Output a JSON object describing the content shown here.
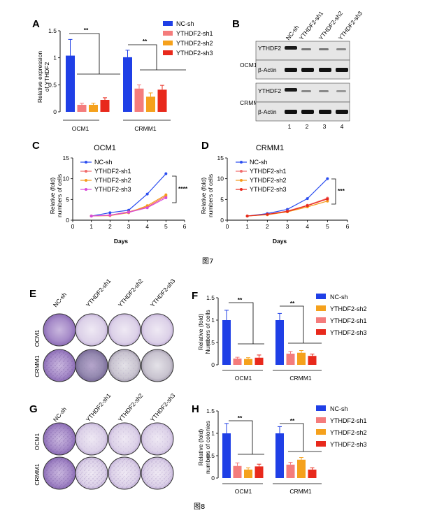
{
  "figure7": {
    "caption": "图7",
    "panelA": {
      "letter": "A",
      "ylabel": [
        "Relative expression",
        "of YTHDF2"
      ],
      "legend": [
        "NC-sh",
        "YTHDF2-sh1",
        "YTHDF2-sh2",
        "YTHDF2-sh3"
      ],
      "groups": [
        "OCM1",
        "CRMM1"
      ],
      "sig": [
        "**",
        "**"
      ]
    },
    "panelB": {
      "letter": "B",
      "lanes": [
        "NC-sh",
        "YTHDF2-sh1",
        "YTHDF2-sh2",
        "YTHDF2-sh3"
      ],
      "cells": [
        "OCM1",
        "CRMM1"
      ],
      "bands": [
        "YTHDF2",
        "β-Actin",
        "YTHDF2",
        "β-Actin"
      ],
      "lane_numbers": [
        "1",
        "2",
        "3",
        "4"
      ]
    },
    "panelC": {
      "letter": "C",
      "title": "OCM1",
      "ylabel": [
        "Relative (fold)",
        "numbers of cells"
      ],
      "xlabel": "Days",
      "legend": [
        "NC-sh",
        "YTHDF2-sh1",
        "YTHDF2-sh2",
        "YTHDF2-sh3"
      ],
      "sig": "****"
    },
    "panelD": {
      "letter": "D",
      "title": "CRMM1",
      "ylabel": [
        "Relative (fold)",
        "numbers of cells"
      ],
      "xlabel": "Days",
      "legend": [
        "NC-sh",
        "YTHDF2-sh1",
        "YTHDF2-sh2",
        "YTHDF2-sh3"
      ],
      "sig": "***"
    }
  },
  "figure8": {
    "caption": "图8",
    "panelE": {
      "letter": "E",
      "cols": [
        "NC-sh",
        "YTHDF2-sh1",
        "YTHDF2-sh2",
        "YTHDF2-sh3"
      ],
      "rows": [
        "OCM1",
        "CRMM1"
      ]
    },
    "panelF": {
      "letter": "F",
      "ylabel": [
        "Relative (fold)",
        "Numbers of cells"
      ],
      "legend": [
        "NC-sh",
        "YTHDF2-sh2",
        "YTHDF2-sh1",
        "YTHDF2-sh3"
      ],
      "groups": [
        "OCM1",
        "CRMM1"
      ],
      "sig": [
        "**",
        "**"
      ]
    },
    "panelG": {
      "letter": "G",
      "cols": [
        "NC-sh",
        "YTHDF2-sh1",
        "YTHDF2-sh2",
        "YTHDF2-sh3"
      ],
      "rows": [
        "OCM1",
        "CRMM1"
      ]
    },
    "panelH": {
      "letter": "H",
      "ylabel": [
        "Relative (fold)",
        "numbers of colonies"
      ],
      "legend": [
        "NC-sh",
        "YTHDF2-sh1",
        "YTHDF2-sh2",
        "YTHDF2-sh3"
      ],
      "groups": [
        "OCM1",
        "CRMM1"
      ],
      "sig": [
        "**",
        "**"
      ]
    }
  },
  "colors": {
    "nc": "#1f3fe6",
    "sh1": "#f47c7c",
    "sh2": "#f5a11c",
    "sh3": "#e8291c",
    "line_nc": "#2a4df0",
    "line_sh1": "#f06a6a",
    "line_sh2": "#f59a1a",
    "line_sh3": "#d94ad9"
  },
  "chart_data": [
    {
      "id": "A",
      "type": "bar",
      "categories": [
        "OCM1",
        "CRMM1"
      ],
      "ylim": [
        0,
        1.5
      ],
      "yticks": [
        0,
        0.5,
        1.0,
        1.5
      ],
      "series": [
        {
          "name": "NC-sh",
          "values": [
            1.04,
            1.01
          ],
          "err": [
            0.3,
            0.13
          ]
        },
        {
          "name": "YTHDF2-sh1",
          "values": [
            0.13,
            0.43
          ],
          "err": [
            0.03,
            0.07
          ]
        },
        {
          "name": "YTHDF2-sh2",
          "values": [
            0.13,
            0.28
          ],
          "err": [
            0.03,
            0.07
          ]
        },
        {
          "name": "YTHDF2-sh3",
          "values": [
            0.22,
            0.41
          ],
          "err": [
            0.04,
            0.08
          ]
        }
      ]
    },
    {
      "id": "C",
      "type": "line",
      "x": [
        1,
        2,
        3,
        4,
        5
      ],
      "xlim": [
        0,
        6
      ],
      "ylim": [
        0,
        15
      ],
      "yticks": [
        0,
        5,
        10,
        15
      ],
      "series": [
        {
          "name": "NC-sh",
          "values": [
            1.0,
            1.8,
            2.4,
            6.3,
            11.2
          ]
        },
        {
          "name": "YTHDF2-sh1",
          "values": [
            1.0,
            1.2,
            2.0,
            3.2,
            5.8
          ]
        },
        {
          "name": "YTHDF2-sh2",
          "values": [
            1.0,
            1.1,
            1.8,
            3.5,
            6.1
          ]
        },
        {
          "name": "YTHDF2-sh3",
          "values": [
            1.0,
            1.2,
            1.9,
            3.0,
            5.4
          ]
        }
      ]
    },
    {
      "id": "D",
      "type": "line",
      "x": [
        1,
        2,
        3,
        4,
        5
      ],
      "xlim": [
        0,
        6
      ],
      "ylim": [
        0,
        15
      ],
      "yticks": [
        0,
        5,
        10,
        15
      ],
      "series": [
        {
          "name": "NC-sh",
          "values": [
            1.0,
            1.6,
            2.6,
            5.2,
            10.0
          ]
        },
        {
          "name": "YTHDF2-sh1",
          "values": [
            1.0,
            1.4,
            2.2,
            3.6,
            5.3
          ]
        },
        {
          "name": "YTHDF2-sh2",
          "values": [
            1.0,
            1.3,
            2.0,
            3.2,
            4.6
          ]
        },
        {
          "name": "YTHDF2-sh3",
          "values": [
            1.0,
            1.4,
            2.1,
            3.5,
            5.1
          ]
        }
      ]
    },
    {
      "id": "F",
      "type": "bar",
      "categories": [
        "OCM1",
        "CRMM1"
      ],
      "ylim": [
        0,
        1.5
      ],
      "yticks": [
        0,
        0.5,
        1.0,
        1.5
      ],
      "series": [
        {
          "name": "NC-sh",
          "values": [
            1.0,
            1.0
          ],
          "err": [
            0.22,
            0.15
          ]
        },
        {
          "name": "YTHDF2-sh1",
          "values": [
            0.14,
            0.25
          ],
          "err": [
            0.03,
            0.05
          ]
        },
        {
          "name": "YTHDF2-sh2",
          "values": [
            0.13,
            0.27
          ],
          "err": [
            0.03,
            0.05
          ]
        },
        {
          "name": "YTHDF2-sh3",
          "values": [
            0.16,
            0.2
          ],
          "err": [
            0.06,
            0.04
          ]
        }
      ]
    },
    {
      "id": "H",
      "type": "bar",
      "categories": [
        "OCM1",
        "CRMM1"
      ],
      "ylim": [
        0,
        1.5
      ],
      "yticks": [
        0,
        0.5,
        1.0,
        1.5
      ],
      "series": [
        {
          "name": "NC-sh",
          "values": [
            1.0,
            1.0
          ],
          "err": [
            0.22,
            0.15
          ]
        },
        {
          "name": "YTHDF2-sh1",
          "values": [
            0.27,
            0.3
          ],
          "err": [
            0.07,
            0.05
          ]
        },
        {
          "name": "YTHDF2-sh2",
          "values": [
            0.19,
            0.41
          ],
          "err": [
            0.04,
            0.05
          ]
        },
        {
          "name": "YTHDF2-sh3",
          "values": [
            0.26,
            0.19
          ],
          "err": [
            0.05,
            0.04
          ]
        }
      ]
    }
  ]
}
